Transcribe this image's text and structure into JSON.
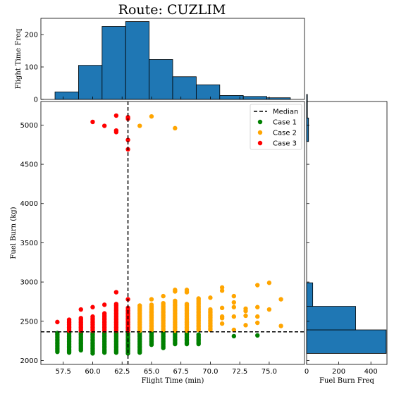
{
  "figure_title": "Route: CUZLIM",
  "colors": {
    "bar": "#1f77b4",
    "case1": "green",
    "case2": "orange",
    "case3": "red",
    "median": "#000000"
  },
  "legend": {
    "placement": "top-right",
    "labels": [
      "Median",
      "Case 1",
      "Case 2",
      "Case 3"
    ]
  },
  "chart_data": [
    {
      "id": "top-histogram",
      "type": "bar",
      "xlabel": "",
      "ylabel": "Flight Time Freq",
      "xlim": [
        55.6,
        78.0
      ],
      "ylim": [
        0,
        250
      ],
      "yticks": [
        0,
        100,
        200
      ],
      "bins": [
        {
          "from": 56.8,
          "to": 58.8,
          "count": 23
        },
        {
          "from": 58.8,
          "to": 60.8,
          "count": 105
        },
        {
          "from": 60.8,
          "to": 62.8,
          "count": 225
        },
        {
          "from": 62.8,
          "to": 64.8,
          "count": 240
        },
        {
          "from": 64.8,
          "to": 66.8,
          "count": 123
        },
        {
          "from": 66.8,
          "to": 68.8,
          "count": 70
        },
        {
          "from": 68.8,
          "to": 70.8,
          "count": 45
        },
        {
          "from": 70.8,
          "to": 72.8,
          "count": 12
        },
        {
          "from": 72.8,
          "to": 74.8,
          "count": 9
        },
        {
          "from": 74.8,
          "to": 76.8,
          "count": 5
        }
      ]
    },
    {
      "id": "main-scatter",
      "type": "scatter",
      "xlabel": "Flight Time (min)",
      "ylabel": "Fuel Burn (kg)",
      "xlim": [
        55.6,
        78.0
      ],
      "ylim": [
        1950,
        5300
      ],
      "xticks": [
        57.5,
        60.0,
        62.5,
        65.0,
        67.5,
        70.0,
        72.5,
        75.0
      ],
      "xtick_labels": [
        "57.5",
        "60.0",
        "62.5",
        "65.0",
        "67.5",
        "70.0",
        "72.5",
        "75.0"
      ],
      "yticks": [
        2000,
        2500,
        3000,
        3500,
        4000,
        4500,
        5000
      ],
      "median": {
        "x": 63.0,
        "y": 2365
      },
      "series": [
        {
          "name": "Case 1",
          "columns": [
            {
              "x": 57,
              "min": 2110,
              "max": 2360
            },
            {
              "x": 58,
              "min": 2100,
              "max": 2360
            },
            {
              "x": 59,
              "min": 2130,
              "max": 2360
            },
            {
              "x": 60,
              "min": 2090,
              "max": 2360
            },
            {
              "x": 61,
              "min": 2100,
              "max": 2360
            },
            {
              "x": 62,
              "min": 2100,
              "max": 2360
            },
            {
              "x": 63,
              "min": 2090,
              "max": 2360
            },
            {
              "x": 64,
              "min": 2100,
              "max": 2360
            },
            {
              "x": 65,
              "min": 2200,
              "max": 2360
            },
            {
              "x": 66,
              "min": 2160,
              "max": 2360
            },
            {
              "x": 67,
              "min": 2210,
              "max": 2360
            },
            {
              "x": 68,
              "min": 2210,
              "max": 2360
            },
            {
              "x": 69,
              "min": 2210,
              "max": 2340
            }
          ],
          "points": [
            [
              72,
              2310
            ],
            [
              74,
              2320
            ]
          ]
        },
        {
          "name": "Case 2",
          "columns": [
            {
              "x": 64,
              "min": 2380,
              "max": 2700
            },
            {
              "x": 65,
              "min": 2390,
              "max": 2710
            },
            {
              "x": 66,
              "min": 2390,
              "max": 2730
            },
            {
              "x": 67,
              "min": 2380,
              "max": 2760
            },
            {
              "x": 68,
              "min": 2380,
              "max": 2730
            },
            {
              "x": 69,
              "min": 2390,
              "max": 2800
            },
            {
              "x": 70,
              "min": 2390,
              "max": 2660
            }
          ],
          "points": [
            [
              65,
              2780
            ],
            [
              66,
              2820
            ],
            [
              67,
              2880
            ],
            [
              67,
              2900
            ],
            [
              68,
              2870
            ],
            [
              68,
              2900
            ],
            [
              70,
              2800
            ],
            [
              71,
              2470
            ],
            [
              71,
              2540
            ],
            [
              71,
              2560
            ],
            [
              71,
              2670
            ],
            [
              71,
              2890
            ],
            [
              71,
              2930
            ],
            [
              72,
              2390
            ],
            [
              72,
              2560
            ],
            [
              72,
              2680
            ],
            [
              72,
              2740
            ],
            [
              72,
              2820
            ],
            [
              73,
              2450
            ],
            [
              73,
              2570
            ],
            [
              73,
              2630
            ],
            [
              73,
              2660
            ],
            [
              74,
              2480
            ],
            [
              74,
              2560
            ],
            [
              74,
              2680
            ],
            [
              74,
              2960
            ],
            [
              75,
              2650
            ],
            [
              75,
              2990
            ],
            [
              76,
              2440
            ],
            [
              76,
              2780
            ],
            [
              64,
              4990
            ],
            [
              65,
              5110
            ],
            [
              67,
              4960
            ]
          ]
        },
        {
          "name": "Case 3",
          "columns": [
            {
              "x": 58,
              "min": 2380,
              "max": 2520
            },
            {
              "x": 59,
              "min": 2380,
              "max": 2540
            },
            {
              "x": 60,
              "min": 2380,
              "max": 2560
            },
            {
              "x": 61,
              "min": 2380,
              "max": 2600
            },
            {
              "x": 62,
              "min": 2380,
              "max": 2700
            },
            {
              "x": 63,
              "min": 2380,
              "max": 2640
            }
          ],
          "points": [
            [
              57,
              2490
            ],
            [
              59,
              2650
            ],
            [
              60,
              2680
            ],
            [
              61,
              2710
            ],
            [
              62,
              2720
            ],
            [
              62,
              2870
            ],
            [
              63,
              2670
            ],
            [
              63,
              2780
            ],
            [
              60,
              5040
            ],
            [
              61,
              4990
            ],
            [
              62,
              4910
            ],
            [
              62,
              4930
            ],
            [
              62,
              5120
            ],
            [
              63,
              4690
            ],
            [
              63,
              4810
            ],
            [
              63,
              5080
            ],
            [
              63,
              5100
            ]
          ]
        }
      ]
    },
    {
      "id": "right-histogram",
      "type": "bar",
      "orientation": "horizontal",
      "xlabel": "Fuel Burn Freq",
      "ylabel": "",
      "xlim": [
        0,
        500
      ],
      "xticks": [
        0,
        200,
        400
      ],
      "bins": [
        {
          "from": 2090,
          "to": 2390,
          "count": 495
        },
        {
          "from": 2390,
          "to": 2690,
          "count": 305
        },
        {
          "from": 2690,
          "to": 2990,
          "count": 38
        },
        {
          "from": 2990,
          "to": 3290,
          "count": 0
        },
        {
          "from": 3290,
          "to": 3590,
          "count": 0
        },
        {
          "from": 3590,
          "to": 3890,
          "count": 0
        },
        {
          "from": 3890,
          "to": 4190,
          "count": 0
        },
        {
          "from": 4190,
          "to": 4490,
          "count": 0
        },
        {
          "from": 4490,
          "to": 4790,
          "count": 0
        },
        {
          "from": 4790,
          "to": 5090,
          "count": 12
        },
        {
          "from": 5090,
          "to": 5390,
          "count": 5
        }
      ]
    }
  ]
}
